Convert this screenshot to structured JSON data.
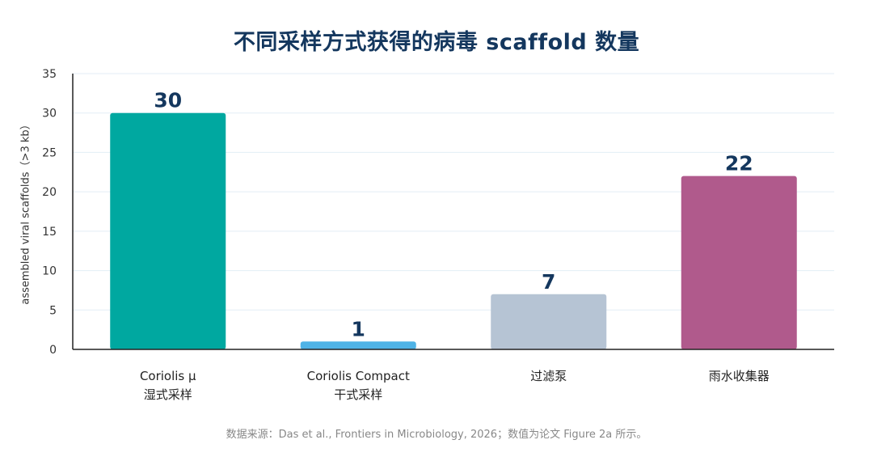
{
  "chart_data": {
    "type": "bar",
    "title": "不同采样方式获得的病毒 scaffold 数量",
    "ylabel": "assembled viral scaffolds（>3 kb）",
    "xlabel": "",
    "ylim": [
      0,
      35
    ],
    "yticks": [
      0,
      5,
      10,
      15,
      20,
      25,
      30,
      35
    ],
    "grid": true,
    "categories": [
      [
        "Coriolis μ",
        "湿式采样"
      ],
      [
        "Coriolis Compact",
        "干式采样"
      ],
      [
        "过滤泵"
      ],
      [
        "雨水收集器"
      ]
    ],
    "values": [
      30,
      1,
      7,
      22
    ],
    "data_labels": [
      "30",
      "1",
      "7",
      "22"
    ],
    "colors": [
      "#00a8a0",
      "#4fb3e6",
      "#b6c4d4",
      "#b05a8c"
    ]
  },
  "footer": {
    "source": "数据来源：Das et al., Frontiers in Microbiology, 2026；数值为论文 Figure 2a 所示。"
  },
  "colors": {
    "title": "#14375e",
    "grid": "#e3eef5",
    "axis": "#222222"
  }
}
